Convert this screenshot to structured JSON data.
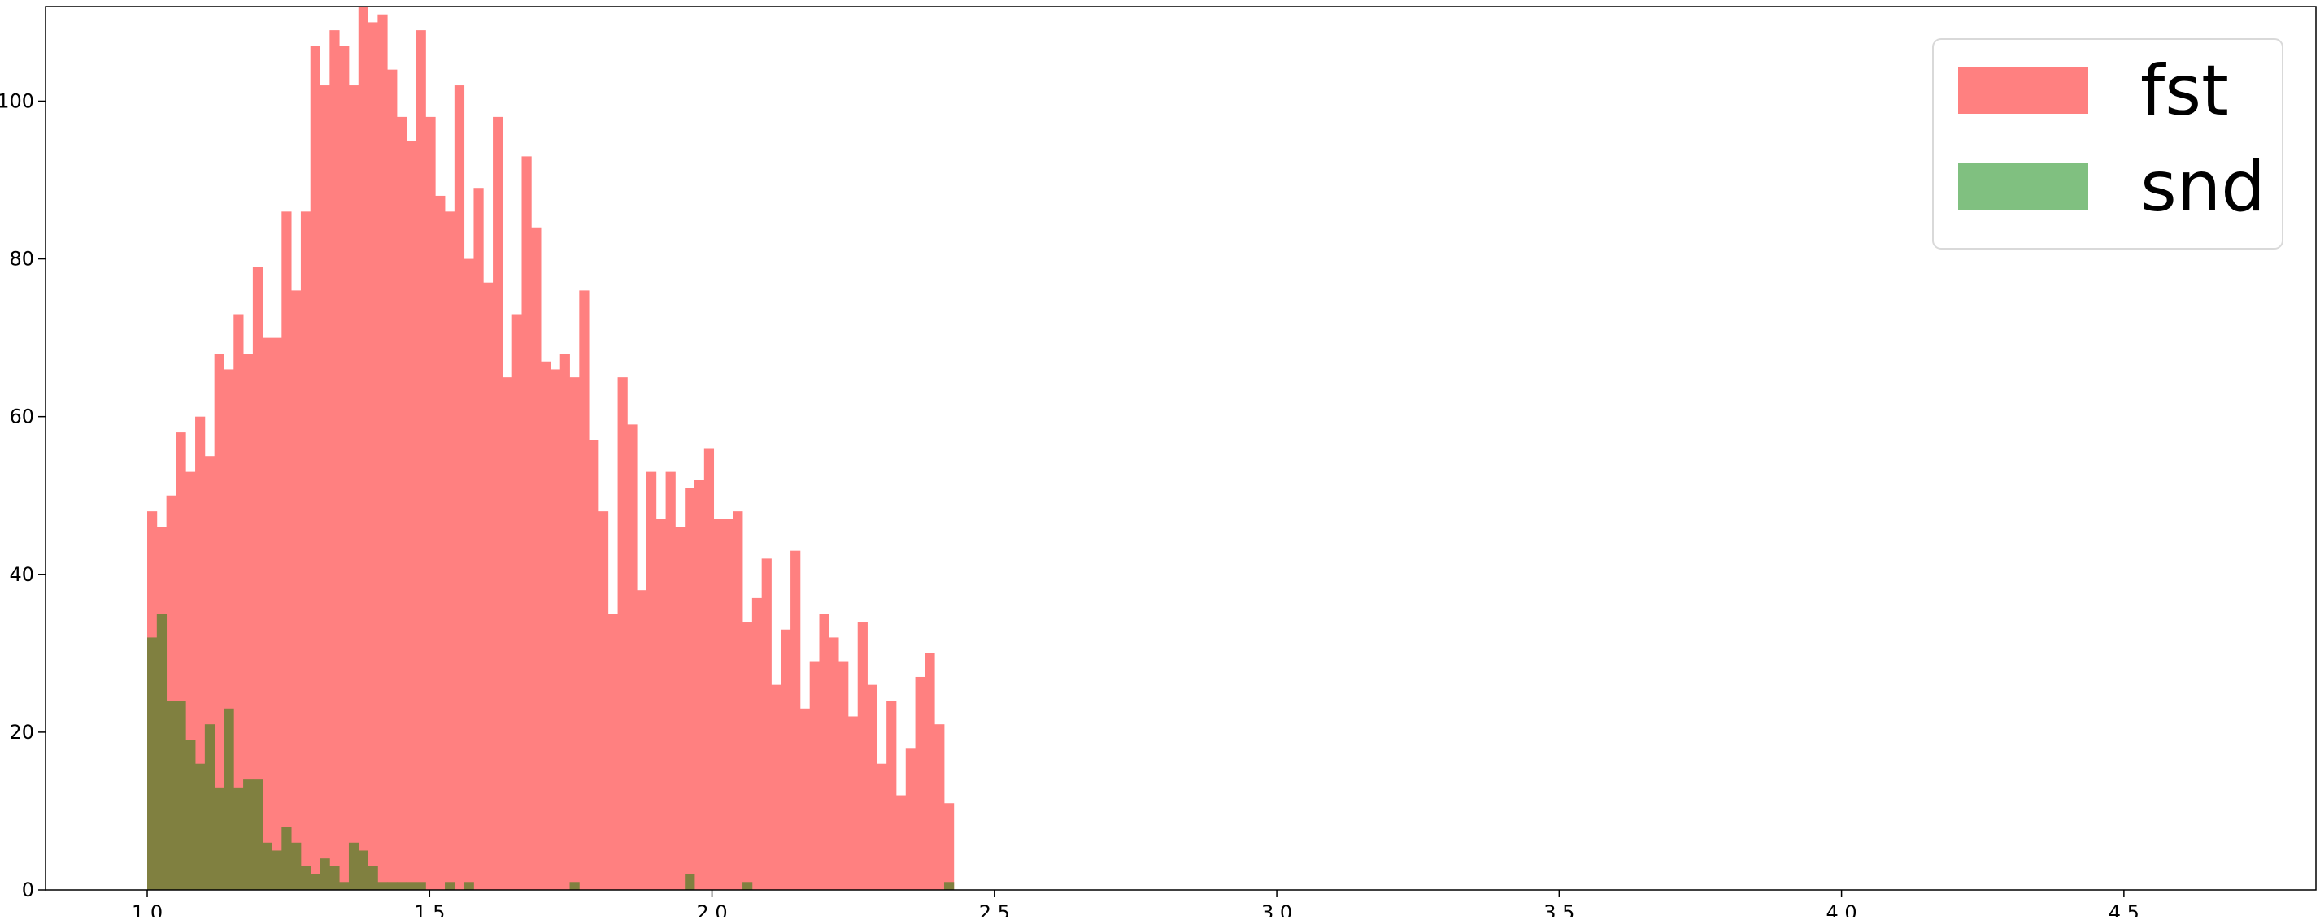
{
  "chart_data": {
    "type": "bar",
    "title": "",
    "xlabel": "",
    "ylabel": "",
    "xlim": [
      0.82,
      4.84
    ],
    "ylim": [
      0,
      112
    ],
    "grid": false,
    "legend_position": "top-right",
    "xticks": [
      "1.0",
      "1.5",
      "2.0",
      "2.5",
      "3.0",
      "3.5",
      "4.0",
      "4.5"
    ],
    "yticks": [
      "0",
      "20",
      "40",
      "60",
      "80",
      "100"
    ],
    "bin_start": 1.0,
    "bin_width": 0.017,
    "series": [
      {
        "name": "fst",
        "color": "#ff8080",
        "values": [
          48,
          46,
          50,
          58,
          53,
          60,
          55,
          68,
          66,
          73,
          68,
          79,
          70,
          70,
          86,
          76,
          86,
          107,
          102,
          109,
          107,
          102,
          112,
          110,
          111,
          104,
          98,
          95,
          109,
          98,
          88,
          86,
          102,
          80,
          89,
          77,
          98,
          65,
          73,
          93,
          84,
          67,
          66,
          68,
          65,
          76,
          57,
          48,
          35,
          65,
          59,
          38,
          53,
          47,
          53,
          46,
          51,
          52,
          56,
          47,
          47,
          48,
          34,
          37,
          42,
          26,
          33,
          43,
          23,
          29,
          35,
          32,
          29,
          22,
          34,
          26,
          16,
          24,
          12,
          18,
          27,
          30,
          21,
          11
        ]
      },
      {
        "name": "snd",
        "color": "#808040",
        "legend_color": "#80c080",
        "values": [
          32,
          35,
          24,
          24,
          19,
          16,
          21,
          13,
          23,
          13,
          14,
          14,
          6,
          5,
          8,
          6,
          3,
          2,
          4,
          3,
          1,
          6,
          5,
          3,
          1,
          1,
          1,
          1,
          1,
          0,
          0,
          1,
          0,
          1,
          0,
          0,
          0,
          0,
          0,
          0,
          0,
          0,
          0,
          0,
          1,
          0,
          0,
          0,
          0,
          0,
          0,
          0,
          0,
          0,
          0,
          0,
          2,
          0,
          0,
          0,
          0,
          0,
          1,
          0,
          0,
          0,
          0,
          0,
          0,
          0,
          0,
          0,
          0,
          0,
          0,
          0,
          0,
          0,
          0,
          0,
          0,
          0,
          0,
          1
        ]
      }
    ]
  }
}
